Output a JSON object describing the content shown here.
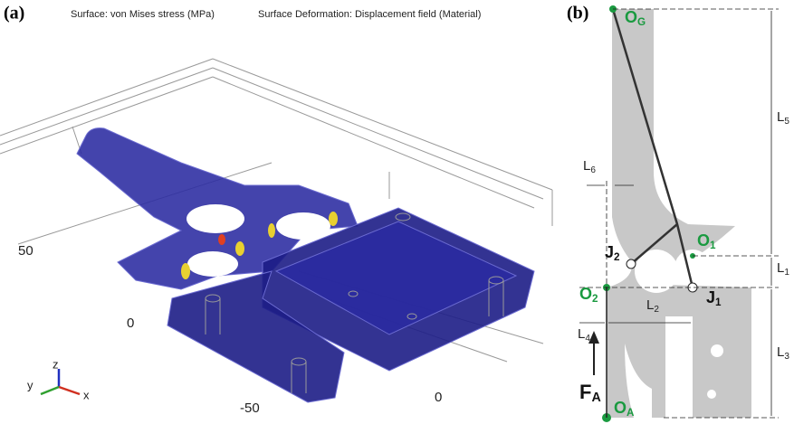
{
  "panel_a": {
    "label": "(a)",
    "caption": "Surface: von Mises stress (MPa)",
    "caption2": "Surface Deformation: Displacement field (Material)",
    "axis_labels": [
      "50",
      "0",
      "-50",
      "0"
    ],
    "triad": [
      "z",
      "y",
      "x"
    ]
  },
  "panel_b": {
    "label": "(b)",
    "points": [
      {
        "base": "O",
        "sub": "G"
      },
      {
        "base": "O",
        "sub": "1"
      },
      {
        "base": "O",
        "sub": "2"
      },
      {
        "base": "O",
        "sub": "A"
      },
      {
        "base": "J",
        "sub": "2"
      },
      {
        "base": "J",
        "sub": "1"
      }
    ],
    "dims": [
      {
        "base": "L",
        "sub": "5"
      },
      {
        "base": "L",
        "sub": "6"
      },
      {
        "base": "L",
        "sub": "1"
      },
      {
        "base": "L",
        "sub": "4"
      },
      {
        "base": "L",
        "sub": "2"
      },
      {
        "base": "L",
        "sub": "3"
      }
    ],
    "force": {
      "base": "F",
      "sub": "A"
    }
  }
}
